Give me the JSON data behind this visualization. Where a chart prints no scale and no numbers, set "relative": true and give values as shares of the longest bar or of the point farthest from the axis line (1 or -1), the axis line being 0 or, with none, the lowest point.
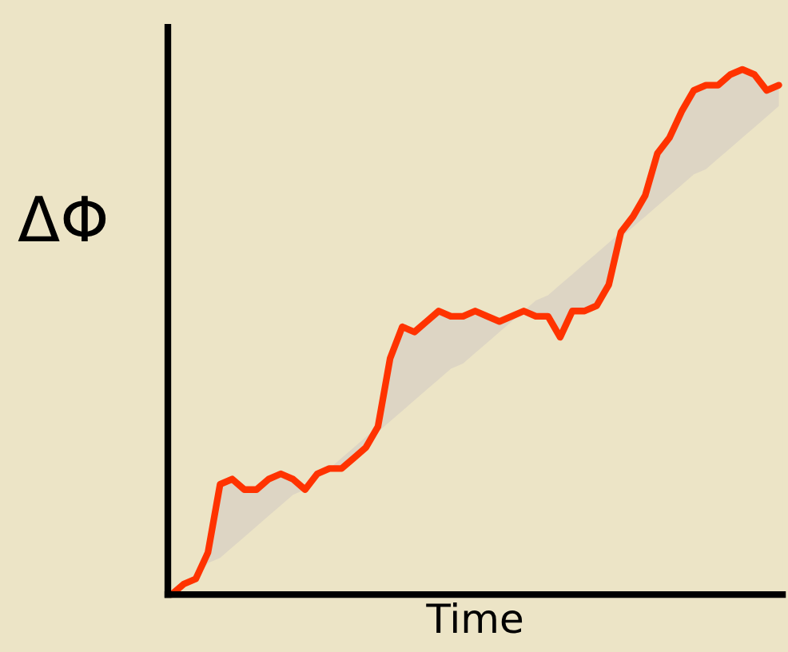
{
  "chart_data": {
    "type": "line",
    "relative": true,
    "xlabel": "Time",
    "ylabel": "ΔΦ",
    "categories": [
      null,
      null,
      null,
      null,
      null,
      null,
      null,
      null,
      null,
      null,
      null,
      null,
      null,
      null,
      null,
      null,
      null,
      null,
      null,
      null,
      null,
      null,
      null,
      null,
      null,
      null,
      null,
      null,
      null,
      null,
      null,
      null,
      null,
      null,
      null,
      null,
      null,
      null,
      null,
      null,
      null,
      null,
      null,
      null,
      null,
      null,
      null,
      null,
      null,
      null,
      null
    ],
    "series": [
      {
        "color": "#ff3300",
        "values": [
          0,
          0.02,
          0.03,
          0.08,
          0.21,
          0.22,
          0.2,
          0.2,
          0.22,
          0.23,
          0.22,
          0.2,
          0.23,
          0.24,
          0.24,
          0.26,
          0.28,
          0.32,
          0.45,
          0.51,
          0.5,
          0.52,
          0.54,
          0.53,
          0.53,
          0.54,
          0.53,
          0.52,
          0.53,
          0.54,
          0.53,
          0.53,
          0.49,
          0.54,
          0.54,
          0.55,
          0.59,
          0.69,
          0.72,
          0.76,
          0.84,
          0.87,
          0.92,
          0.96,
          0.97,
          0.97,
          0.99,
          1,
          0.99,
          0.96,
          0.97
        ],
        "lower": [
          0,
          0.02,
          0.03,
          0.06,
          0.07,
          0.09,
          0.11,
          0.13,
          0.15,
          0.17,
          0.19,
          0.2,
          0.22,
          0.24,
          0.24,
          0.26,
          0.28,
          0.31,
          0.33,
          0.35,
          0.37,
          0.39,
          0.41,
          0.43,
          0.44,
          0.46,
          0.48,
          0.5,
          0.52,
          0.54,
          0.53,
          0.53,
          0.49,
          0.54,
          0.54,
          0.55,
          0.59,
          0.68,
          0.7,
          0.72,
          0.74,
          0.76,
          0.78,
          0.8,
          0.81,
          0.83,
          0.85,
          0.87,
          0.89,
          0.91,
          0.93
        ],
        "upper": [
          0,
          0.02,
          0.04,
          0.08,
          0.21,
          0.22,
          0.2,
          0.2,
          0.22,
          0.23,
          0.22,
          0.2,
          0.23,
          0.24,
          0.26,
          0.28,
          0.3,
          0.32,
          0.45,
          0.51,
          0.5,
          0.52,
          0.54,
          0.53,
          0.53,
          0.54,
          0.53,
          0.52,
          0.53,
          0.54,
          0.56,
          0.57,
          0.59,
          0.61,
          0.63,
          0.65,
          0.67,
          0.69,
          0.72,
          0.76,
          0.84,
          0.87,
          0.92,
          0.96,
          0.97,
          0.97,
          0.99,
          1,
          0.99,
          0.96,
          0.97
        ]
      }
    ],
    "grid": false,
    "marker": "none",
    "line_style": "solid"
  }
}
